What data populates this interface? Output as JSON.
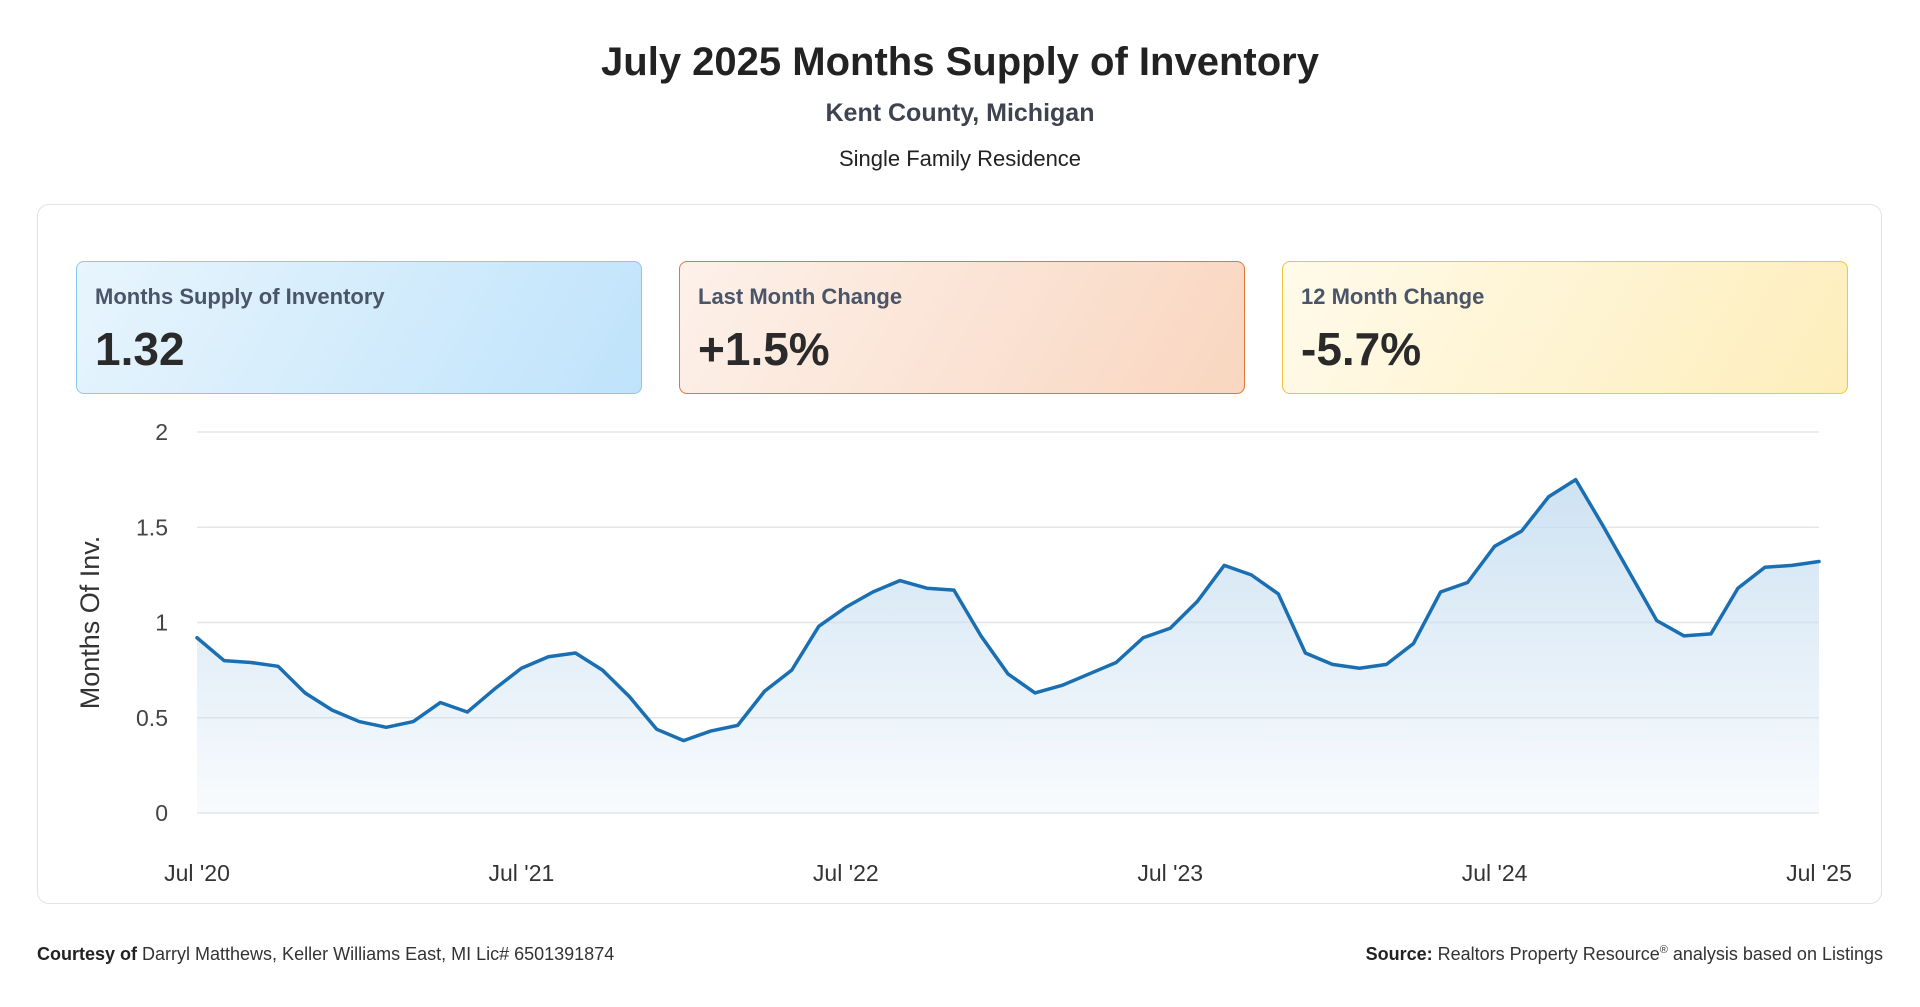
{
  "header": {
    "title": "July 2025 Months Supply of Inventory",
    "subtitle": "Kent County, Michigan",
    "property_type": "Single Family Residence"
  },
  "cards": [
    {
      "label": "Months Supply of Inventory",
      "value": "1.32"
    },
    {
      "label": "Last Month Change",
      "value": "+1.5%"
    },
    {
      "label": "12 Month Change",
      "value": "-5.7%"
    }
  ],
  "footer": {
    "courtesy_label": "Courtesy of",
    "courtesy_text": "Darryl Matthews, Keller Williams East, MI Lic# 6501391874",
    "source_label": "Source:",
    "source_text_before": "Realtors Property Resource",
    "source_mark": "®",
    "source_text_after": "analysis based on Listings"
  },
  "colors": {
    "line": "#1a6fb3",
    "area_top": "#c9dff1",
    "grid": "#e3e6ea"
  },
  "chart_data": {
    "type": "area",
    "title": "",
    "xlabel": "",
    "ylabel": "Months Of Inv.",
    "ylim": [
      0,
      2
    ],
    "yticks": [
      "0",
      "0.5",
      "1",
      "1.5",
      "2"
    ],
    "xticks": [
      "Jul '20",
      "Jul '21",
      "Jul '22",
      "Jul '23",
      "Jul '24",
      "Jul '25"
    ],
    "grid": true,
    "x": [
      "2020-07",
      "2020-08",
      "2020-09",
      "2020-10",
      "2020-11",
      "2020-12",
      "2021-01",
      "2021-02",
      "2021-03",
      "2021-04",
      "2021-05",
      "2021-06",
      "2021-07",
      "2021-08",
      "2021-09",
      "2021-10",
      "2021-11",
      "2021-12",
      "2022-01",
      "2022-02",
      "2022-03",
      "2022-04",
      "2022-05",
      "2022-06",
      "2022-07",
      "2022-08",
      "2022-09",
      "2022-10",
      "2022-11",
      "2022-12",
      "2023-01",
      "2023-02",
      "2023-03",
      "2023-04",
      "2023-05",
      "2023-06",
      "2023-07",
      "2023-08",
      "2023-09",
      "2023-10",
      "2023-11",
      "2023-12",
      "2024-01",
      "2024-02",
      "2024-03",
      "2024-04",
      "2024-05",
      "2024-06",
      "2024-07",
      "2024-08",
      "2024-09",
      "2024-10",
      "2024-11",
      "2024-12",
      "2025-01",
      "2025-02",
      "2025-03",
      "2025-04",
      "2025-05",
      "2025-06",
      "2025-07"
    ],
    "series": [
      {
        "values": [
          0.92,
          0.8,
          0.79,
          0.77,
          0.63,
          0.54,
          0.48,
          0.45,
          0.48,
          0.58,
          0.53,
          0.65,
          0.76,
          0.82,
          0.84,
          0.75,
          0.61,
          0.44,
          0.38,
          0.43,
          0.46,
          0.64,
          0.75,
          0.98,
          1.08,
          1.16,
          1.22,
          1.18,
          1.17,
          0.93,
          0.73,
          0.63,
          0.67,
          0.73,
          0.79,
          0.92,
          0.97,
          1.11,
          1.3,
          1.25,
          1.15,
          0.84,
          0.78,
          0.76,
          0.78,
          0.89,
          1.16,
          1.21,
          1.4,
          1.48,
          1.66,
          1.75,
          1.51,
          1.26,
          1.01,
          0.93,
          0.94,
          1.18,
          1.29,
          1.3,
          1.32
        ]
      }
    ]
  }
}
